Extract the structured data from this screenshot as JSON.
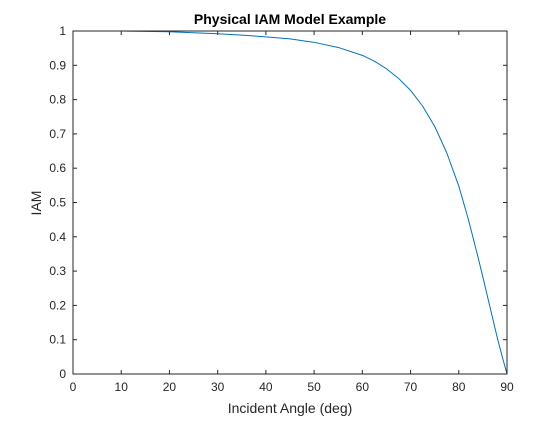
{
  "chart_data": {
    "type": "line",
    "title": "Physical IAM Model Example",
    "xlabel": "Incident Angle (deg)",
    "ylabel": "IAM",
    "xlim": [
      0,
      90
    ],
    "ylim": [
      0,
      1
    ],
    "xticks": [
      "0",
      "10",
      "20",
      "30",
      "40",
      "50",
      "60",
      "70",
      "80",
      "90"
    ],
    "yticks": [
      "0",
      "0.1",
      "0.2",
      "0.3",
      "0.4",
      "0.5",
      "0.6",
      "0.7",
      "0.8",
      "0.9",
      "1"
    ],
    "grid": false,
    "legend": "none",
    "series": [
      {
        "color": "#0072BD",
        "x": [
          0,
          5,
          10,
          15,
          20,
          25,
          30,
          35,
          40,
          45,
          50,
          55,
          60,
          62.5,
          65,
          67.5,
          70,
          72.5,
          75,
          77.5,
          80,
          82,
          84,
          85,
          86,
          87,
          88,
          89,
          90
        ],
        "y": [
          1.0,
          1.0,
          1.0,
          0.999,
          0.998,
          0.995,
          0.992,
          0.988,
          0.983,
          0.977,
          0.967,
          0.952,
          0.929,
          0.912,
          0.89,
          0.862,
          0.827,
          0.781,
          0.722,
          0.645,
          0.548,
          0.45,
          0.34,
          0.282,
          0.223,
          0.164,
          0.105,
          0.051,
          0.0
        ]
      }
    ]
  }
}
